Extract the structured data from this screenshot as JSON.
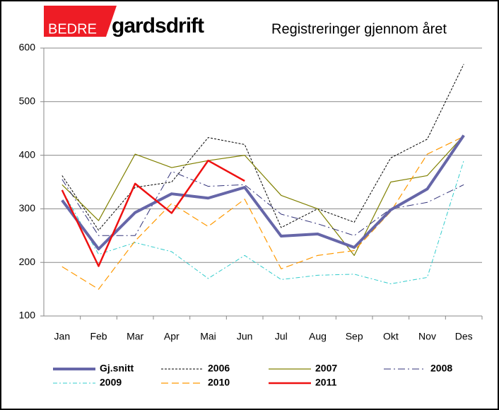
{
  "logo": {
    "part1": "BEDRE",
    "part2": "gardsdrift"
  },
  "chart_data": {
    "type": "line",
    "title": "Registreringer gjennom året",
    "categories": [
      "Jan",
      "Feb",
      "Mar",
      "Apr",
      "Mai",
      "Jun",
      "Jul",
      "Aug",
      "Sep",
      "Okt",
      "Nov",
      "Des"
    ],
    "ylim": [
      100,
      600
    ],
    "yticks": [
      100,
      200,
      300,
      400,
      500,
      600
    ],
    "grid": true,
    "series": [
      {
        "name": "Gj.snitt",
        "color": "#6666a8",
        "width": 4,
        "dash": "",
        "values": [
          316,
          225,
          293,
          328,
          320,
          340,
          249,
          253,
          228,
          298,
          337,
          437
        ]
      },
      {
        "name": "2006",
        "color": "#000000",
        "width": 1,
        "dash": "3,2",
        "values": [
          362,
          260,
          340,
          350,
          433,
          420,
          265,
          300,
          275,
          395,
          430,
          570
        ]
      },
      {
        "name": "2007",
        "color": "#808000",
        "width": 1.2,
        "dash": "",
        "values": [
          345,
          278,
          402,
          377,
          390,
          400,
          325,
          300,
          213,
          350,
          362,
          437
        ]
      },
      {
        "name": "2008",
        "color": "#33337a",
        "width": 1,
        "dash": "10,4,2,4",
        "values": [
          355,
          250,
          250,
          370,
          342,
          345,
          290,
          272,
          250,
          300,
          312,
          345
        ]
      },
      {
        "name": "2009",
        "color": "#33cccc",
        "width": 1,
        "dash": "6,3,2,3",
        "values": [
          335,
          215,
          237,
          220,
          170,
          213,
          168,
          176,
          178,
          160,
          172,
          390
        ]
      },
      {
        "name": "2010",
        "color": "#ff9900",
        "width": 1.2,
        "dash": "10,5",
        "values": [
          192,
          150,
          240,
          310,
          267,
          318,
          188,
          213,
          222,
          295,
          402,
          435
        ]
      },
      {
        "name": "2011",
        "color": "#ee1111",
        "width": 2.5,
        "dash": "",
        "values": [
          335,
          193,
          347,
          292,
          390,
          352,
          null,
          null,
          null,
          null,
          null,
          null
        ]
      }
    ]
  }
}
